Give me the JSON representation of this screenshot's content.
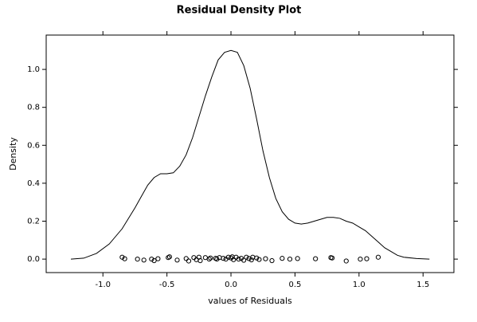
{
  "chart_data": {
    "type": "density",
    "title": "Residual Density Plot",
    "x_label": "values of Residuals",
    "y_label": "Density",
    "xlim": [
      -1.443,
      1.741
    ],
    "ylim": [
      -0.071,
      1.181
    ],
    "xticks": [
      {
        "value": -1,
        "label": "-1.0"
      },
      {
        "value": -0.5,
        "label": "-0.5"
      },
      {
        "value": 0,
        "label": "0.0"
      },
      {
        "value": 0.5,
        "label": "0.5"
      },
      {
        "value": 1,
        "label": "1.0"
      },
      {
        "value": 1.5,
        "label": "1.5"
      }
    ],
    "yticks": [
      {
        "value": 0,
        "label": "0.0"
      },
      {
        "value": 0.2,
        "label": "0.2"
      },
      {
        "value": 0.4,
        "label": "0.4"
      },
      {
        "value": 0.6,
        "label": "0.6"
      },
      {
        "value": 0.8,
        "label": "0.8"
      },
      {
        "value": 1,
        "label": "1.0"
      }
    ],
    "color": "#000000",
    "series": [
      {
        "kind": "line",
        "x": [
          -1.25,
          -1.15,
          -1.05,
          -0.95,
          -0.85,
          -0.75,
          -0.7,
          -0.65,
          -0.6,
          -0.55,
          -0.5,
          -0.45,
          -0.4,
          -0.35,
          -0.3,
          -0.25,
          -0.2,
          -0.15,
          -0.1,
          -0.05,
          0.0,
          0.05,
          0.1,
          0.15,
          0.2,
          0.25,
          0.3,
          0.35,
          0.4,
          0.45,
          0.5,
          0.55,
          0.6,
          0.65,
          0.7,
          0.75,
          0.8,
          0.85,
          0.9,
          0.95,
          1.0,
          1.05,
          1.1,
          1.15,
          1.2,
          1.25,
          1.3,
          1.35,
          1.45,
          1.55
        ],
        "values": [
          0,
          0.005,
          0.03,
          0.08,
          0.16,
          0.27,
          0.33,
          0.39,
          0.43,
          0.45,
          0.45,
          0.455,
          0.49,
          0.55,
          0.64,
          0.75,
          0.86,
          0.96,
          1.05,
          1.09,
          1.1,
          1.09,
          1.02,
          0.9,
          0.74,
          0.57,
          0.43,
          0.32,
          0.25,
          0.21,
          0.19,
          0.185,
          0.19,
          0.2,
          0.21,
          0.22,
          0.22,
          0.215,
          0.2,
          0.19,
          0.17,
          0.15,
          0.12,
          0.09,
          0.06,
          0.04,
          0.02,
          0.01,
          0.003,
          0
        ]
      },
      {
        "kind": "points",
        "x": [
          -0.85,
          -0.83,
          -0.73,
          -0.68,
          -0.62,
          -0.6,
          -0.57,
          -0.49,
          -0.48,
          -0.42,
          -0.35,
          -0.33,
          -0.29,
          -0.27,
          -0.25,
          -0.24,
          -0.2,
          -0.17,
          -0.16,
          -0.12,
          -0.11,
          -0.09,
          -0.06,
          -0.04,
          -0.02,
          0.0,
          0.01,
          0.02,
          0.04,
          0.06,
          0.08,
          0.1,
          0.12,
          0.14,
          0.16,
          0.17,
          0.2,
          0.22,
          0.27,
          0.32,
          0.4,
          0.46,
          0.52,
          0.66,
          0.78,
          0.79,
          0.9,
          1.01,
          1.06,
          1.15
        ],
        "values": [
          0.01,
          0.002,
          0.0,
          -0.005,
          0.0,
          -0.008,
          0.002,
          0.008,
          0.012,
          -0.005,
          0.003,
          -0.01,
          0.008,
          -0.003,
          0.01,
          -0.008,
          0.008,
          0.0,
          0.006,
          0.004,
          0.0,
          0.008,
          0.004,
          0.0,
          0.01,
          0.006,
          0.012,
          -0.003,
          0.01,
          0.0,
          0.004,
          -0.006,
          0.01,
          0.003,
          -0.004,
          0.01,
          0.006,
          -0.002,
          0.002,
          -0.008,
          0.004,
          0.0,
          0.003,
          0.002,
          0.008,
          0.006,
          -0.01,
          0.0,
          0.002,
          0.01
        ]
      }
    ]
  }
}
